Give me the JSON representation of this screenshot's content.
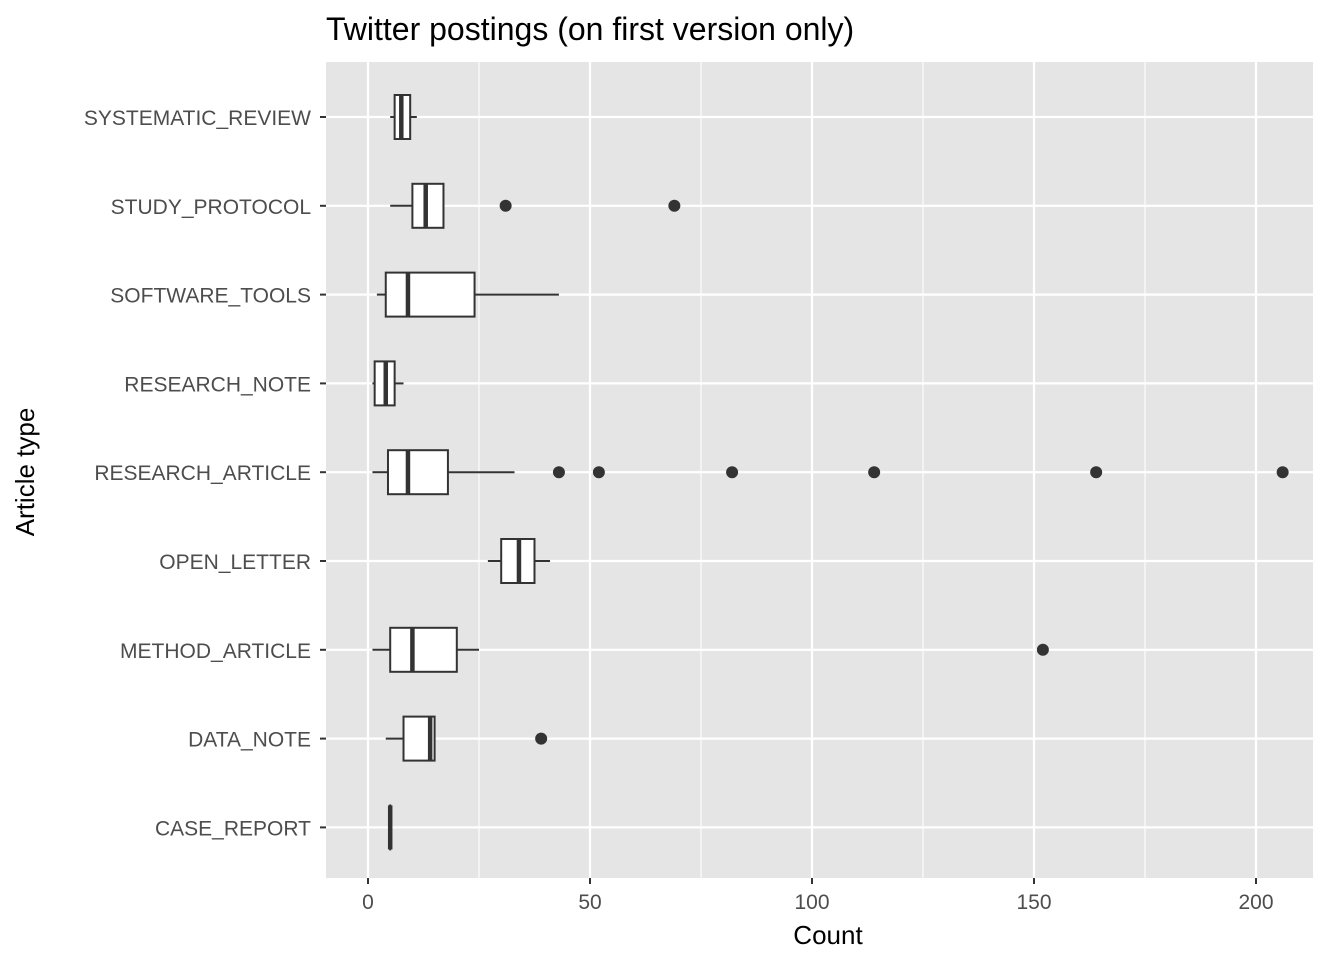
{
  "chart_data": {
    "type": "boxplot",
    "title": "Twitter postings (on first version only)",
    "xlabel": "Count",
    "ylabel": "Article type",
    "xlim": [
      -9,
      212
    ],
    "x_ticks": [
      0,
      50,
      100,
      150,
      200
    ],
    "x_tick_labels": [
      "0",
      "50",
      "100",
      "150",
      "200"
    ],
    "grid": true,
    "panel_background": "#e5e5e5",
    "grid_color": "#ffffff",
    "box_fill": "#ffffff",
    "box_stroke": "#333333",
    "outlier_color": "#333333",
    "categories": [
      "SYSTEMATIC_REVIEW",
      "STUDY_PROTOCOL",
      "SOFTWARE_TOOLS",
      "RESEARCH_NOTE",
      "RESEARCH_ARTICLE",
      "OPEN_LETTER",
      "METHOD_ARTICLE",
      "DATA_NOTE",
      "CASE_REPORT"
    ],
    "boxes": [
      {
        "category": "SYSTEMATIC_REVIEW",
        "whisker_low": 5,
        "q1": 6,
        "median": 7.5,
        "q3": 9.5,
        "whisker_high": 11,
        "outliers": []
      },
      {
        "category": "STUDY_PROTOCOL",
        "whisker_low": 5,
        "q1": 10,
        "median": 13,
        "q3": 17,
        "whisker_high": 17,
        "outliers": [
          31,
          69
        ]
      },
      {
        "category": "SOFTWARE_TOOLS",
        "whisker_low": 2,
        "q1": 4,
        "median": 9,
        "q3": 24,
        "whisker_high": 43,
        "outliers": []
      },
      {
        "category": "RESEARCH_NOTE",
        "whisker_low": 1,
        "q1": 1.5,
        "median": 4,
        "q3": 6,
        "whisker_high": 8,
        "outliers": []
      },
      {
        "category": "RESEARCH_ARTICLE",
        "whisker_low": 1,
        "q1": 4.5,
        "median": 9,
        "q3": 18,
        "whisker_high": 33,
        "outliers": [
          43,
          52,
          82,
          114,
          164,
          206
        ]
      },
      {
        "category": "OPEN_LETTER",
        "whisker_low": 27,
        "q1": 30,
        "median": 34,
        "q3": 37.5,
        "whisker_high": 41,
        "outliers": []
      },
      {
        "category": "METHOD_ARTICLE",
        "whisker_low": 1,
        "q1": 5,
        "median": 10,
        "q3": 20,
        "whisker_high": 25,
        "outliers": [
          152
        ]
      },
      {
        "category": "DATA_NOTE",
        "whisker_low": 4,
        "q1": 8,
        "median": 14,
        "q3": 15,
        "whisker_high": 15,
        "outliers": [
          39
        ]
      },
      {
        "category": "CASE_REPORT",
        "whisker_low": 5,
        "q1": 5,
        "median": 5,
        "q3": 5,
        "whisker_high": 5,
        "outliers": []
      }
    ]
  }
}
